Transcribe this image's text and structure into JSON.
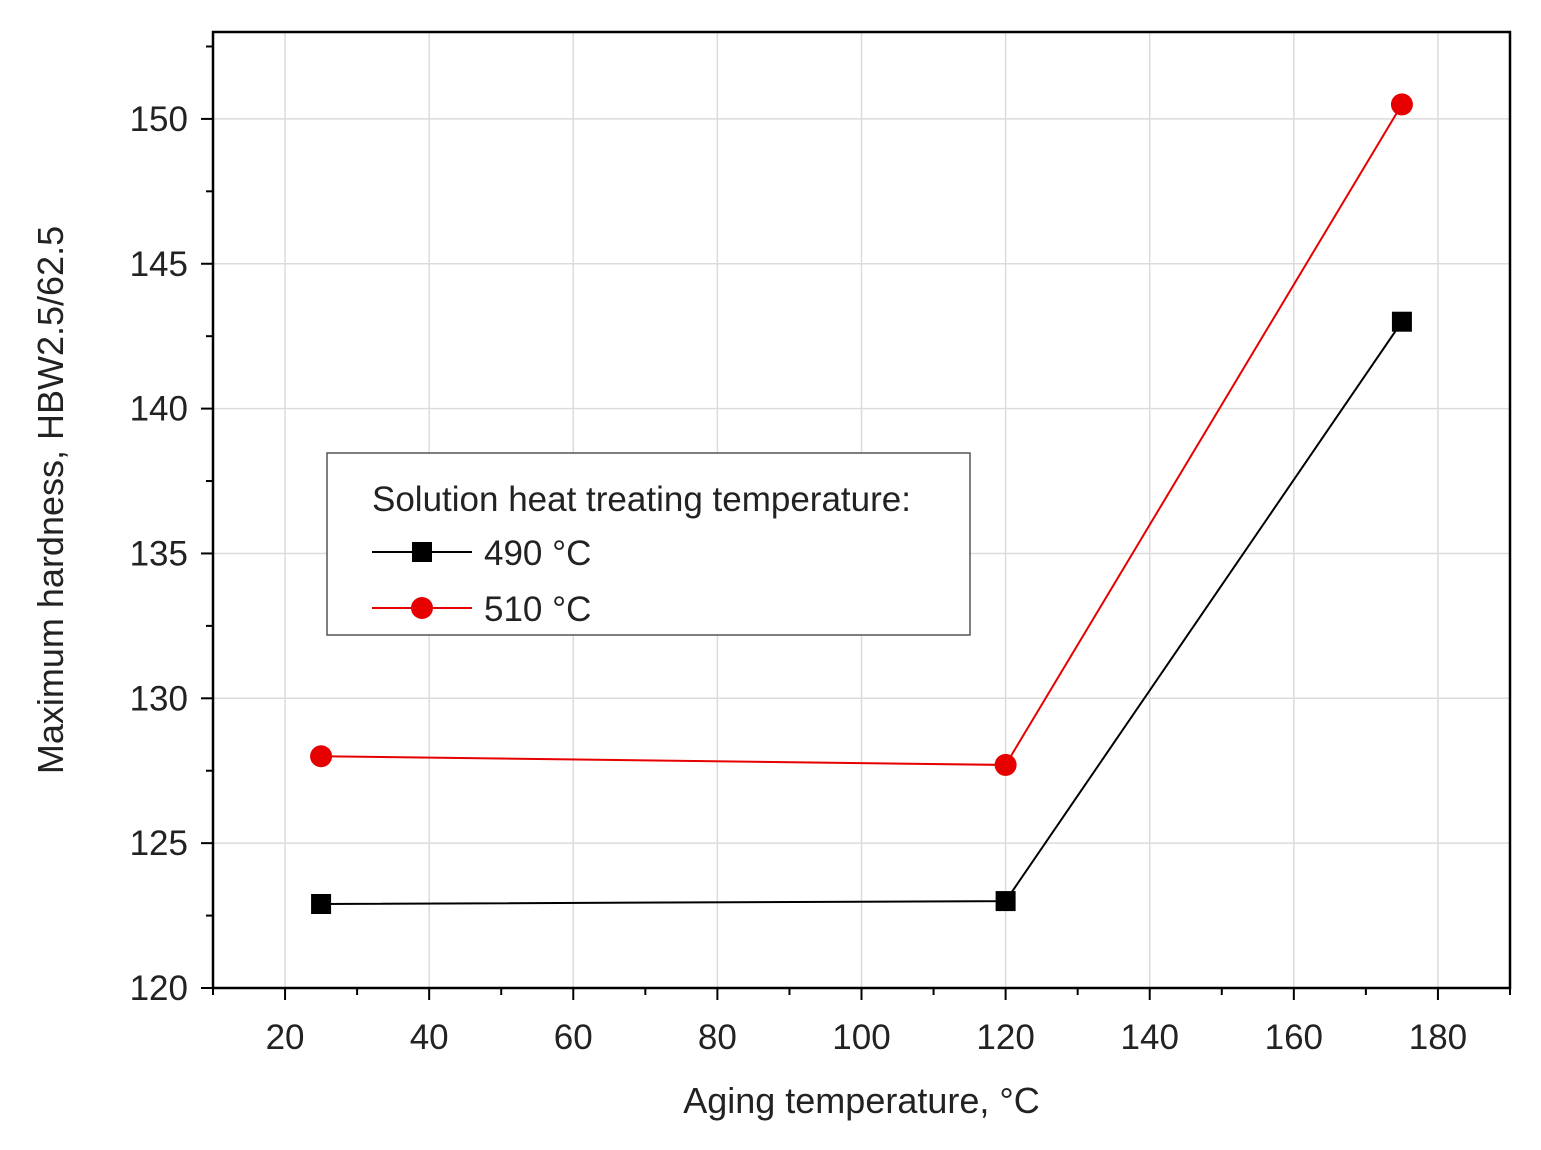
{
  "chart_data": {
    "type": "line",
    "title": "",
    "xlabel": "Aging temperature, °C",
    "ylabel": "Maximum hardness, HBW2.5/62.5",
    "xlim": [
      10,
      190
    ],
    "ylim": [
      120,
      153
    ],
    "x_ticks": [
      20,
      40,
      60,
      80,
      100,
      120,
      140,
      160,
      180
    ],
    "x_minor_ticks": [
      10,
      30,
      50,
      70,
      90,
      110,
      130,
      150,
      170,
      190
    ],
    "y_ticks": [
      120,
      125,
      130,
      135,
      140,
      145,
      150
    ],
    "y_minor_ticks": [
      122.5,
      127.5,
      132.5,
      137.5,
      142.5,
      147.5,
      152.5
    ],
    "grid": true,
    "legend": {
      "title": "Solution heat treating temperature:",
      "position": "center-left"
    },
    "series": [
      {
        "name": "490 °C",
        "marker": "square",
        "color": "#000000",
        "x": [
          25,
          120,
          175
        ],
        "y": [
          122.9,
          123.0,
          143.0
        ]
      },
      {
        "name": "510 °C",
        "marker": "circle",
        "color": "#e60000",
        "x": [
          25,
          120,
          175
        ],
        "y": [
          128.0,
          127.7,
          150.5
        ]
      }
    ]
  }
}
